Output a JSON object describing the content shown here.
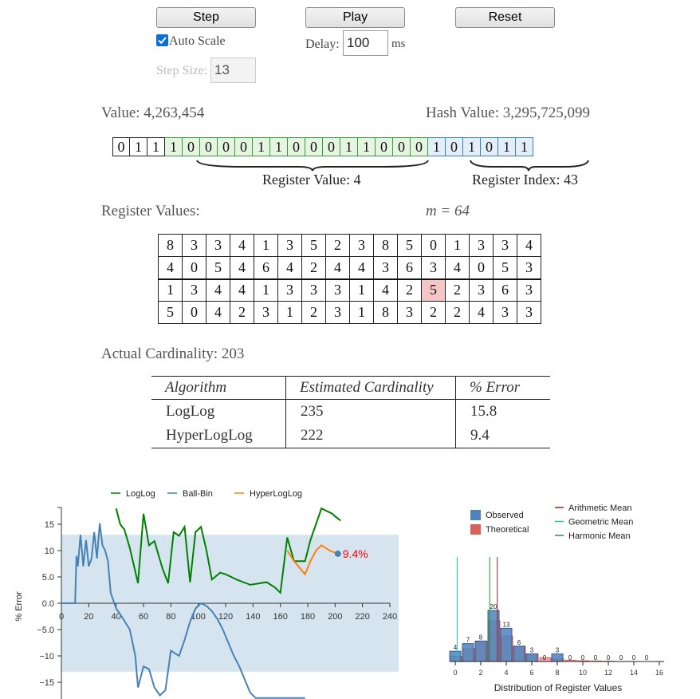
{
  "controls": {
    "step_label": "Step",
    "play_label": "Play",
    "reset_label": "Reset",
    "auto_scale_label": "Auto Scale",
    "auto_scale_checked": true,
    "delay_label": "Delay:",
    "delay_value": "100",
    "delay_unit": "ms",
    "step_size_label": "Step Size:",
    "step_size_value": "13"
  },
  "hash": {
    "value_label": "Value: 4,263,454",
    "hash_label": "Hash Value: 3,295,725,099",
    "bits": [
      "0",
      "1",
      "1",
      "1",
      "0",
      "0",
      "0",
      "0",
      "1",
      "1",
      "0",
      "0",
      "0",
      "1",
      "1",
      "0",
      "0",
      "0",
      "1",
      "0",
      "1",
      "0",
      "1",
      "1"
    ],
    "register_value_label": "Register Value: 4",
    "register_index_label": "Register Index: 43"
  },
  "registers": {
    "label": "Register Values:",
    "m_label": "m = 64",
    "rows": [
      [
        "8",
        "3",
        "3",
        "4",
        "1",
        "3",
        "5",
        "2",
        "3",
        "8",
        "5",
        "0",
        "1",
        "3",
        "3",
        "4"
      ],
      [
        "4",
        "0",
        "5",
        "4",
        "6",
        "4",
        "2",
        "4",
        "4",
        "3",
        "6",
        "3",
        "4",
        "0",
        "5",
        "3"
      ],
      [
        "1",
        "3",
        "4",
        "4",
        "1",
        "3",
        "3",
        "3",
        "1",
        "4",
        "2",
        "5",
        "2",
        "3",
        "6",
        "3"
      ],
      [
        "5",
        "0",
        "4",
        "2",
        "3",
        "1",
        "2",
        "3",
        "1",
        "8",
        "3",
        "2",
        "2",
        "4",
        "3",
        "3"
      ]
    ]
  },
  "cardinality": {
    "actual_label": "Actual Cardinality: 203",
    "headers": [
      "Algorithm",
      "Estimated Cardinality",
      "% Error"
    ],
    "rows": [
      [
        "LogLog",
        "235",
        "15.8"
      ],
      [
        "HyperLogLog",
        "222",
        "9.4"
      ]
    ]
  },
  "chart_data": [
    {
      "type": "line",
      "ylabel": "% Error",
      "xlabel": "",
      "xlim": [
        0,
        240
      ],
      "ylim": [
        -18,
        18
      ],
      "x_ticks": [
        "0",
        "20",
        "40",
        "60",
        "80",
        "100",
        "120",
        "140",
        "160",
        "180",
        "200",
        "220",
        "240"
      ],
      "y_ticks": [
        "15",
        "10",
        "5.0",
        "0.0",
        "−5.0",
        "−10",
        "−15"
      ],
      "band": [
        -13,
        13
      ],
      "legend": [
        "LogLog",
        "Ball-Bin",
        "HyperLogLog"
      ],
      "colors": {
        "LogLog": "#008000",
        "Ball-Bin": "#4682b4",
        "HyperLogLog": "#ff7f0e",
        "band": "#d6e4f0"
      },
      "series": [
        {
          "name": "LogLog",
          "x": [
            40,
            43,
            46,
            50,
            54,
            56,
            60,
            64,
            68,
            74,
            78,
            82,
            86,
            90,
            94,
            98,
            102,
            106,
            110,
            116,
            120,
            124,
            128,
            138,
            150,
            156,
            160,
            165,
            170,
            178,
            182,
            190,
            198,
            200,
            204
          ],
          "y": [
            18,
            15,
            14,
            10.5,
            6,
            3.8,
            17,
            11,
            11.8,
            6.5,
            3.8,
            13.5,
            12.8,
            14.5,
            4,
            13.5,
            14.5,
            10,
            4.5,
            5.8,
            5.5,
            5,
            4.5,
            3.5,
            4,
            3,
            2,
            12.5,
            8,
            8,
            12,
            18,
            17,
            16.5,
            15.7
          ]
        },
        {
          "name": "Ball-Bin",
          "x": [
            0,
            10,
            11,
            12,
            14,
            16,
            18,
            20,
            22,
            24,
            26,
            28,
            30,
            32,
            34,
            36,
            40,
            44,
            50,
            54,
            56,
            60,
            64,
            68,
            72,
            76,
            80,
            86,
            90,
            94,
            98,
            102,
            106,
            110,
            114,
            118,
            122,
            126,
            130,
            134,
            138,
            142,
            146,
            150,
            156,
            162,
            170,
            178
          ],
          "y": [
            0,
            0,
            9,
            7,
            13,
            7,
            12,
            7,
            8.5,
            13.5,
            8.5,
            15.2,
            11,
            10,
            8,
            2,
            -1,
            -2.5,
            -5,
            -10,
            -16,
            -12,
            -12.5,
            -16,
            -17.5,
            -16.5,
            -9,
            -10,
            -7,
            -3.5,
            -1,
            0,
            -0.5,
            -1.5,
            -3,
            -5,
            -7.5,
            -10,
            -12,
            -14.5,
            -17,
            -18,
            -18,
            -18,
            -18,
            -18,
            -18,
            -18
          ]
        },
        {
          "name": "HyperLogLog",
          "x": [
            165,
            170,
            178,
            182,
            186,
            190,
            196,
            202
          ],
          "y": [
            10,
            8,
            5.5,
            8,
            10,
            11,
            10,
            9.4
          ]
        }
      ],
      "annotation": "9.4%",
      "annotation_color": "#ff0000"
    },
    {
      "type": "bar",
      "xlabel": "Distribution of Register Values",
      "x_ticks": [
        "0",
        "2",
        "4",
        "6",
        "8",
        "10",
        "12",
        "14",
        "16"
      ],
      "legend_bars": [
        "Observed",
        "Theoretical"
      ],
      "legend_lines": [
        "Arithmetic Mean",
        "Geometric Mean",
        "Harmonic Mean"
      ],
      "colors": {
        "Observed": "#4f81bd",
        "Theoretical": "#d9605c",
        "Arithmetic Mean": "#a02020",
        "Geometric Mean": "#20c0c0",
        "Harmonic Mean": "#20a020"
      },
      "categories": [
        "0",
        "1",
        "2",
        "3",
        "4",
        "5",
        "6",
        "7",
        "8",
        "9",
        "10",
        "11",
        "12",
        "13",
        "14",
        "15"
      ],
      "observed": [
        4,
        7,
        8,
        20,
        13,
        6,
        3,
        0,
        3,
        0,
        0,
        0,
        0,
        0,
        0,
        0
      ],
      "theoretical": [
        2,
        5,
        8,
        16,
        10,
        6,
        3,
        1.5,
        1,
        0.5,
        0.3,
        0.2,
        0.1,
        0,
        0,
        0
      ],
      "means": {
        "Arithmetic Mean": 3.3,
        "Geometric Mean": 0.15,
        "Harmonic Mean": 2.7
      }
    }
  ]
}
